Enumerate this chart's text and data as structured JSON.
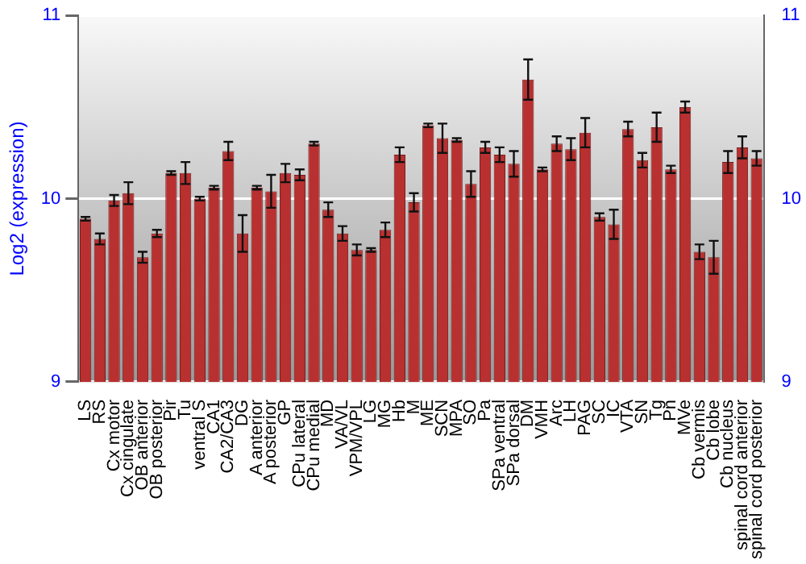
{
  "chart_data": {
    "type": "bar",
    "ylabel": "Log2 (expression)",
    "categories": [
      "LS",
      "RS",
      "Cx motor",
      "Cx cingulate",
      "OB anterior",
      "OB posterior",
      "Pir",
      "Tu",
      "ventral S",
      "CA1",
      "CA2/CA3",
      "DG",
      "A anterior",
      "A posterior",
      "GP",
      "CPu lateral",
      "CPu medial",
      "MD",
      "VA/VL",
      "VPM/VPL",
      "LG",
      "MG",
      "Hb",
      "M",
      "ME",
      "SCN",
      "MPA",
      "SO",
      "Pa",
      "SPa ventral",
      "SPa dorsal",
      "DM",
      "VMH",
      "Arc",
      "LH",
      "PAG",
      "SC",
      "IC",
      "VTA",
      "SN",
      "Tg",
      "Pn",
      "MVe",
      "Cb vermis",
      "Cb lobe",
      "Cb nucleus",
      "spinal cord anterior",
      "spinal cord posterior"
    ],
    "values": [
      9.89,
      9.78,
      9.99,
      10.03,
      9.68,
      9.81,
      10.14,
      10.14,
      10.0,
      10.06,
      10.26,
      9.81,
      10.06,
      10.04,
      10.14,
      10.13,
      10.3,
      9.94,
      9.81,
      9.72,
      9.72,
      9.83,
      10.24,
      9.98,
      10.4,
      10.33,
      10.32,
      10.08,
      10.28,
      10.24,
      10.19,
      10.65,
      10.16,
      10.3,
      10.27,
      10.36,
      9.9,
      9.86,
      10.38,
      10.21,
      10.39,
      10.16,
      10.5,
      9.71,
      9.68,
      10.2,
      10.28,
      10.22
    ],
    "errors": [
      0.01,
      0.03,
      0.03,
      0.06,
      0.03,
      0.02,
      0.01,
      0.06,
      0.01,
      0.01,
      0.05,
      0.1,
      0.01,
      0.09,
      0.05,
      0.03,
      0.01,
      0.04,
      0.04,
      0.03,
      0.01,
      0.04,
      0.04,
      0.05,
      0.01,
      0.08,
      0.01,
      0.07,
      0.03,
      0.04,
      0.07,
      0.11,
      0.01,
      0.04,
      0.06,
      0.08,
      0.02,
      0.08,
      0.04,
      0.04,
      0.08,
      0.02,
      0.03,
      0.04,
      0.09,
      0.06,
      0.06,
      0.04
    ],
    "color": "#b83030",
    "ylim": [
      9,
      11
    ],
    "yticks": [
      9,
      10,
      11
    ],
    "y2lim": [
      9,
      11
    ],
    "y2ticks": [
      9,
      10,
      11
    ],
    "grid": "y",
    "legend": false
  }
}
